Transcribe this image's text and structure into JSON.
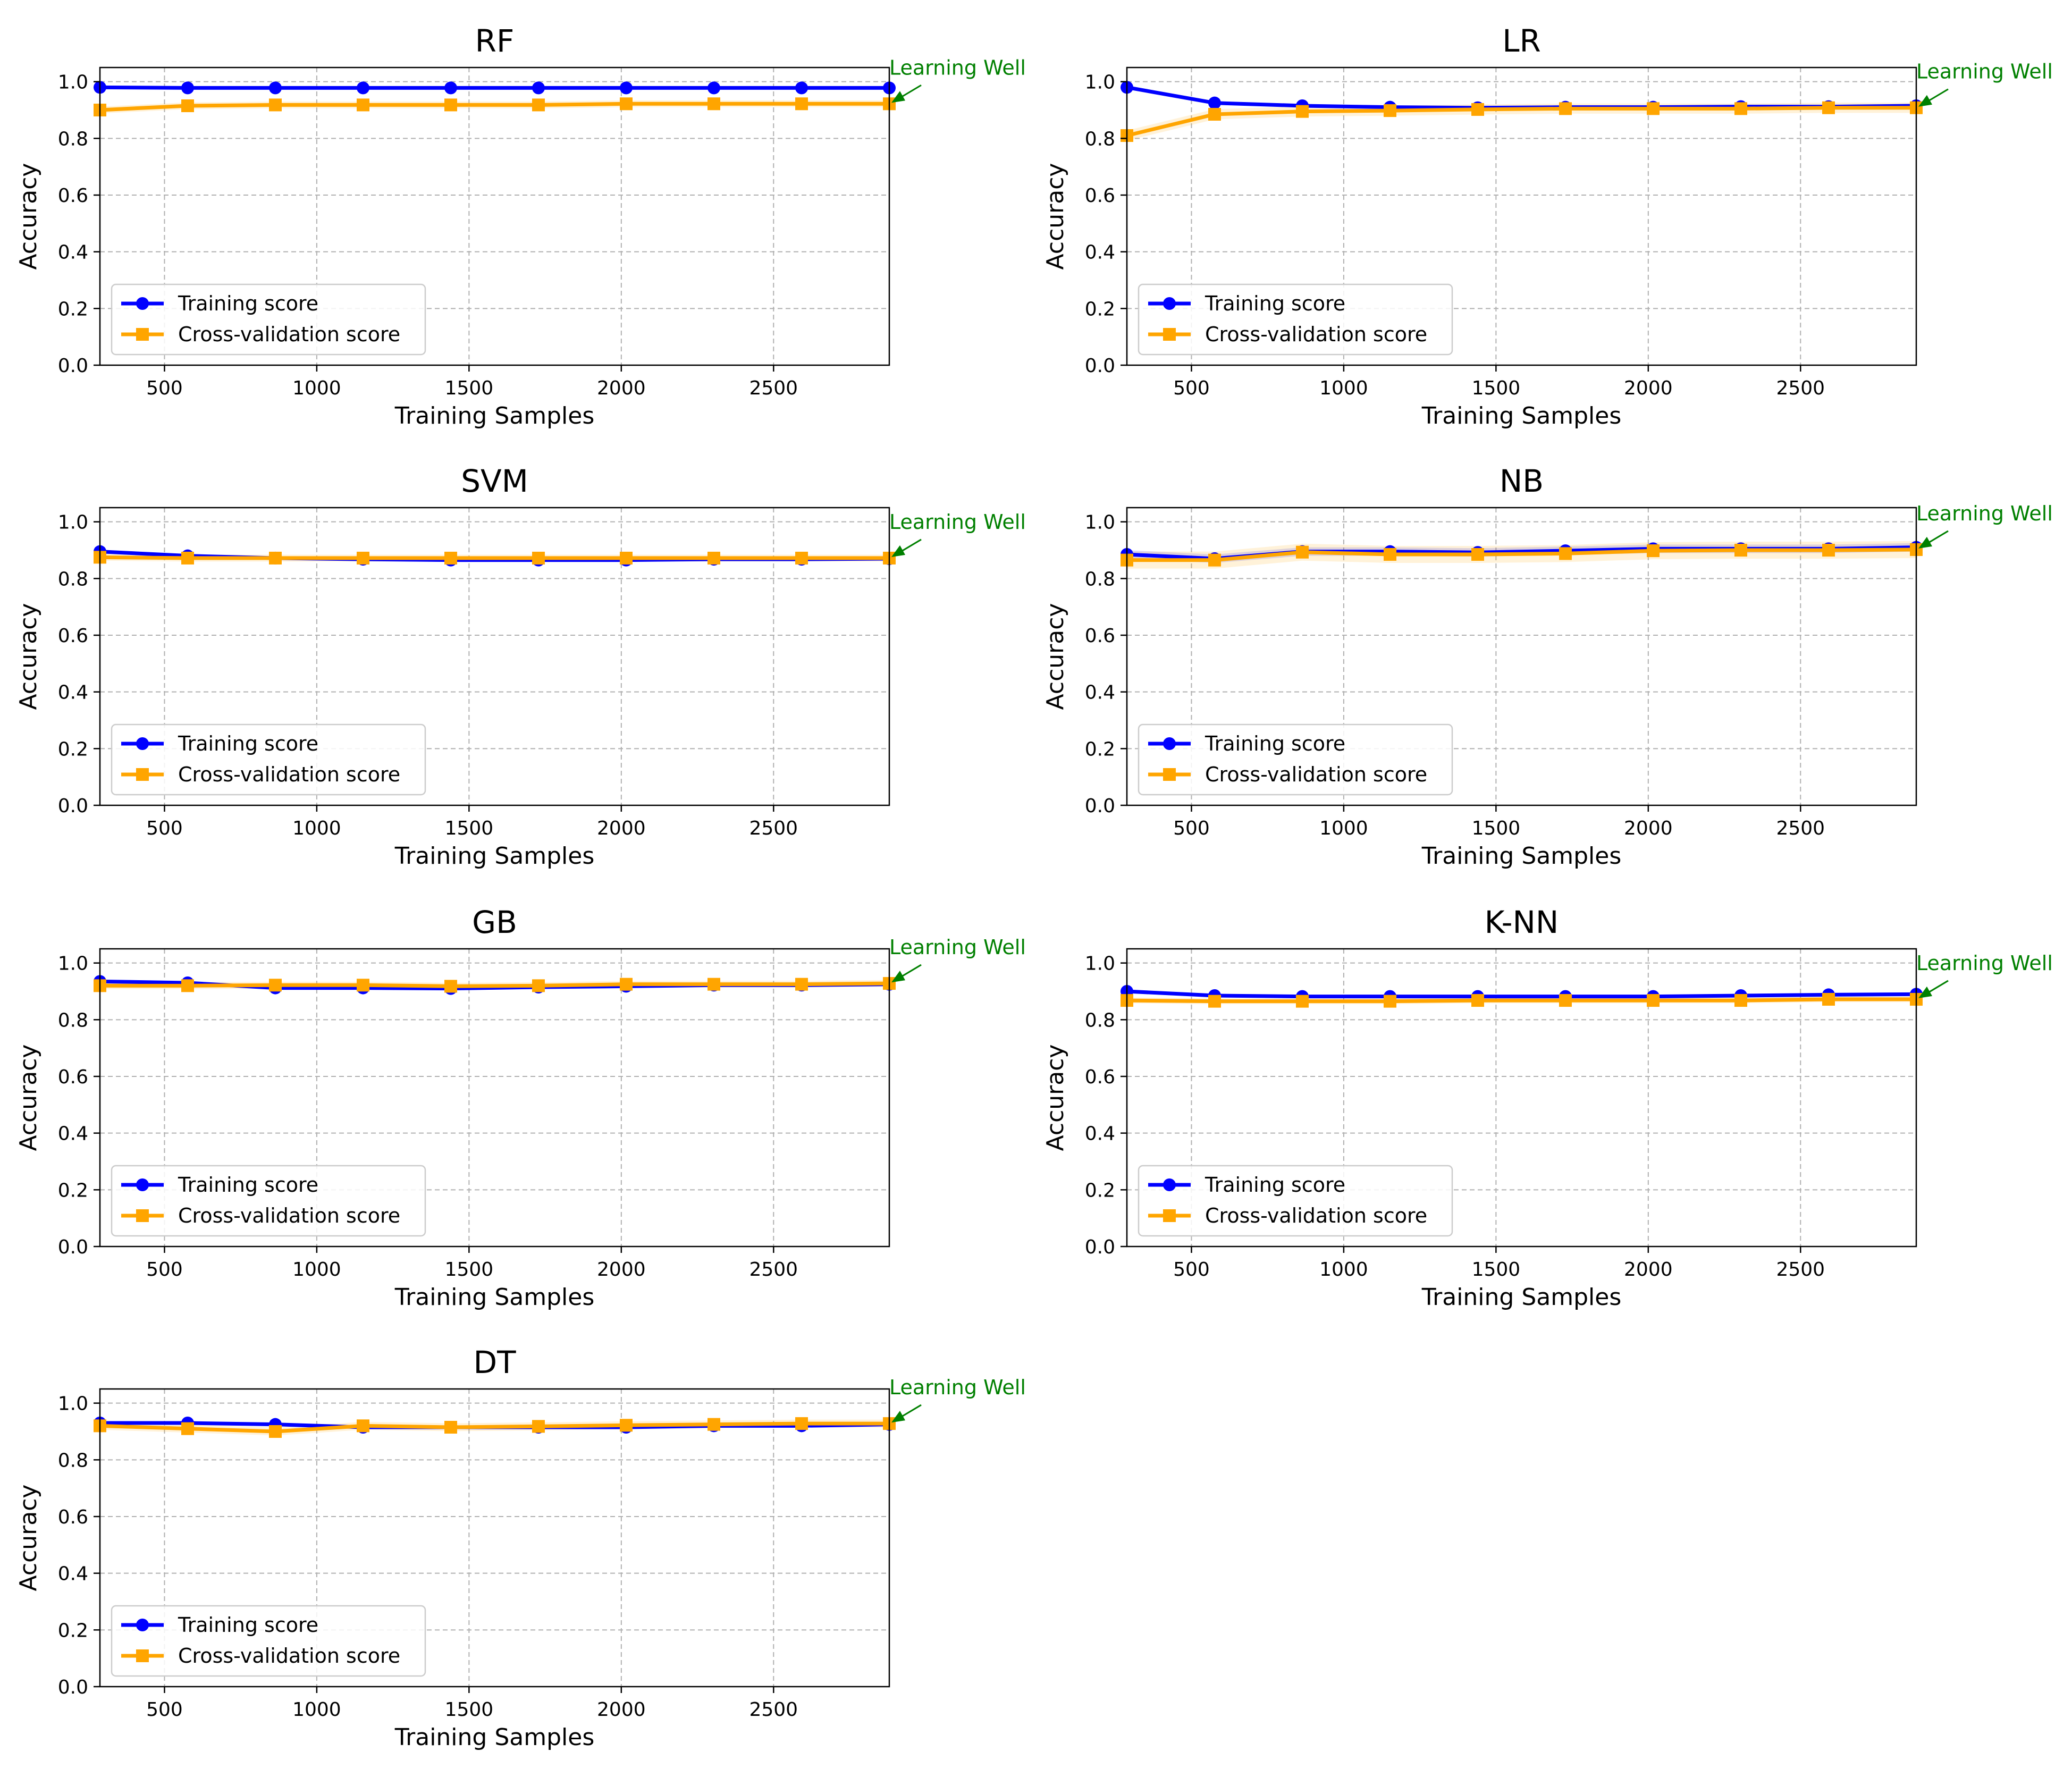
{
  "figure": {
    "annotation_text": "Learning Well"
  },
  "chart_data": [
    {
      "type": "line",
      "title": "RF",
      "xlabel": "Training Samples",
      "ylabel": "Accuracy",
      "xlim": [
        288,
        2880
      ],
      "ylim": [
        0.0,
        1.05
      ],
      "grid": true,
      "legend_position": "lower-left",
      "xticks": [
        500,
        1000,
        1500,
        2000,
        2500
      ],
      "yticks": [
        "0.0",
        "0.2",
        "0.4",
        "0.6",
        "0.8",
        "1.0"
      ],
      "x": [
        288,
        576,
        864,
        1152,
        1440,
        1728,
        2016,
        2304,
        2592,
        2880
      ],
      "series": [
        {
          "name": "Training score",
          "color": "#0000ff",
          "marker": "circle",
          "band": 0.004,
          "values": [
            0.98,
            0.978,
            0.978,
            0.978,
            0.978,
            0.978,
            0.978,
            0.978,
            0.978,
            0.978
          ]
        },
        {
          "name": "Cross-validation score",
          "color": "#ffa500",
          "marker": "square",
          "band": 0.012,
          "values": [
            0.9,
            0.915,
            0.918,
            0.918,
            0.918,
            0.918,
            0.922,
            0.922,
            0.922,
            0.922
          ]
        }
      ],
      "annotation": "Learning Well"
    },
    {
      "type": "line",
      "title": "LR",
      "xlabel": "Training Samples",
      "ylabel": "Accuracy",
      "xlim": [
        288,
        2880
      ],
      "ylim": [
        0.0,
        1.05
      ],
      "grid": true,
      "legend_position": "lower-left",
      "xticks": [
        500,
        1000,
        1500,
        2000,
        2500
      ],
      "yticks": [
        "0.0",
        "0.2",
        "0.4",
        "0.6",
        "0.8",
        "1.0"
      ],
      "x": [
        288,
        576,
        864,
        1152,
        1440,
        1728,
        2016,
        2304,
        2592,
        2880
      ],
      "series": [
        {
          "name": "Training score",
          "color": "#0000ff",
          "marker": "circle",
          "band": 0.006,
          "values": [
            0.98,
            0.925,
            0.915,
            0.91,
            0.908,
            0.91,
            0.91,
            0.912,
            0.912,
            0.915
          ]
        },
        {
          "name": "Cross-validation score",
          "color": "#ffa500",
          "marker": "square",
          "band": 0.018,
          "values": [
            0.81,
            0.885,
            0.895,
            0.898,
            0.902,
            0.905,
            0.905,
            0.905,
            0.908,
            0.908
          ]
        }
      ],
      "annotation": "Learning Well"
    },
    {
      "type": "line",
      "title": "SVM",
      "xlabel": "Training Samples",
      "ylabel": "Accuracy",
      "xlim": [
        288,
        2880
      ],
      "ylim": [
        0.0,
        1.05
      ],
      "grid": true,
      "legend_position": "lower-left",
      "xticks": [
        500,
        1000,
        1500,
        2000,
        2500
      ],
      "yticks": [
        "0.0",
        "0.2",
        "0.4",
        "0.6",
        "0.8",
        "1.0"
      ],
      "x": [
        288,
        576,
        864,
        1152,
        1440,
        1728,
        2016,
        2304,
        2592,
        2880
      ],
      "series": [
        {
          "name": "Training score",
          "color": "#0000ff",
          "marker": "circle",
          "band": 0.006,
          "values": [
            0.895,
            0.88,
            0.872,
            0.868,
            0.865,
            0.865,
            0.865,
            0.868,
            0.868,
            0.87
          ]
        },
        {
          "name": "Cross-validation score",
          "color": "#ffa500",
          "marker": "square",
          "band": 0.012,
          "values": [
            0.875,
            0.872,
            0.872,
            0.872,
            0.872,
            0.872,
            0.872,
            0.872,
            0.872,
            0.872
          ]
        }
      ],
      "annotation": "Learning Well"
    },
    {
      "type": "line",
      "title": "NB",
      "xlabel": "Training Samples",
      "ylabel": "Accuracy",
      "xlim": [
        288,
        2880
      ],
      "ylim": [
        0.0,
        1.05
      ],
      "grid": true,
      "legend_position": "lower-left",
      "xticks": [
        500,
        1000,
        1500,
        2000,
        2500
      ],
      "yticks": [
        "0.0",
        "0.2",
        "0.4",
        "0.6",
        "0.8",
        "1.0"
      ],
      "x": [
        288,
        576,
        864,
        1152,
        1440,
        1728,
        2016,
        2304,
        2592,
        2880
      ],
      "series": [
        {
          "name": "Training score",
          "color": "#0000ff",
          "marker": "circle",
          "band": 0.015,
          "values": [
            0.885,
            0.87,
            0.895,
            0.895,
            0.892,
            0.898,
            0.905,
            0.905,
            0.905,
            0.91
          ]
        },
        {
          "name": "Cross-validation score",
          "color": "#ffa500",
          "marker": "square",
          "band": 0.03,
          "values": [
            0.865,
            0.865,
            0.893,
            0.885,
            0.885,
            0.888,
            0.898,
            0.9,
            0.9,
            0.902
          ]
        }
      ],
      "annotation": "Learning Well"
    },
    {
      "type": "line",
      "title": "GB",
      "xlabel": "Training Samples",
      "ylabel": "Accuracy",
      "xlim": [
        288,
        2880
      ],
      "ylim": [
        0.0,
        1.05
      ],
      "grid": true,
      "legend_position": "lower-left",
      "xticks": [
        500,
        1000,
        1500,
        2000,
        2500
      ],
      "yticks": [
        "0.0",
        "0.2",
        "0.4",
        "0.6",
        "0.8",
        "1.0"
      ],
      "x": [
        288,
        576,
        864,
        1152,
        1440,
        1728,
        2016,
        2304,
        2592,
        2880
      ],
      "series": [
        {
          "name": "Training score",
          "color": "#0000ff",
          "marker": "circle",
          "band": 0.006,
          "values": [
            0.935,
            0.93,
            0.912,
            0.912,
            0.91,
            0.915,
            0.918,
            0.922,
            0.922,
            0.925
          ]
        },
        {
          "name": "Cross-validation score",
          "color": "#ffa500",
          "marker": "square",
          "band": 0.012,
          "values": [
            0.92,
            0.92,
            0.922,
            0.922,
            0.918,
            0.92,
            0.925,
            0.925,
            0.925,
            0.928
          ]
        }
      ],
      "annotation": "Learning Well"
    },
    {
      "type": "line",
      "title": "K-NN",
      "xlabel": "Training Samples",
      "ylabel": "Accuracy",
      "xlim": [
        288,
        2880
      ],
      "ylim": [
        0.0,
        1.05
      ],
      "grid": true,
      "legend_position": "lower-left",
      "xticks": [
        500,
        1000,
        1500,
        2000,
        2500
      ],
      "yticks": [
        "0.0",
        "0.2",
        "0.4",
        "0.6",
        "0.8",
        "1.0"
      ],
      "x": [
        288,
        576,
        864,
        1152,
        1440,
        1728,
        2016,
        2304,
        2592,
        2880
      ],
      "series": [
        {
          "name": "Training score",
          "color": "#0000ff",
          "marker": "circle",
          "band": 0.006,
          "values": [
            0.9,
            0.885,
            0.882,
            0.882,
            0.882,
            0.882,
            0.882,
            0.885,
            0.888,
            0.89
          ]
        },
        {
          "name": "Cross-validation score",
          "color": "#ffa500",
          "marker": "square",
          "band": 0.01,
          "values": [
            0.868,
            0.865,
            0.865,
            0.865,
            0.868,
            0.868,
            0.868,
            0.868,
            0.872,
            0.872
          ]
        }
      ],
      "annotation": "Learning Well"
    },
    {
      "type": "line",
      "title": "DT",
      "xlabel": "Training Samples",
      "ylabel": "Accuracy",
      "xlim": [
        288,
        2880
      ],
      "ylim": [
        0.0,
        1.05
      ],
      "grid": true,
      "legend_position": "lower-left",
      "xticks": [
        500,
        1000,
        1500,
        2000,
        2500
      ],
      "yticks": [
        "0.0",
        "0.2",
        "0.4",
        "0.6",
        "0.8",
        "1.0"
      ],
      "x": [
        288,
        576,
        864,
        1152,
        1440,
        1728,
        2016,
        2304,
        2592,
        2880
      ],
      "series": [
        {
          "name": "Training score",
          "color": "#0000ff",
          "marker": "circle",
          "band": 0.006,
          "values": [
            0.93,
            0.93,
            0.925,
            0.915,
            0.915,
            0.915,
            0.915,
            0.92,
            0.92,
            0.925
          ]
        },
        {
          "name": "Cross-validation score",
          "color": "#ffa500",
          "marker": "square",
          "band": 0.014,
          "values": [
            0.92,
            0.91,
            0.9,
            0.92,
            0.915,
            0.918,
            0.922,
            0.925,
            0.928,
            0.928
          ]
        }
      ],
      "annotation": "Learning Well"
    }
  ]
}
